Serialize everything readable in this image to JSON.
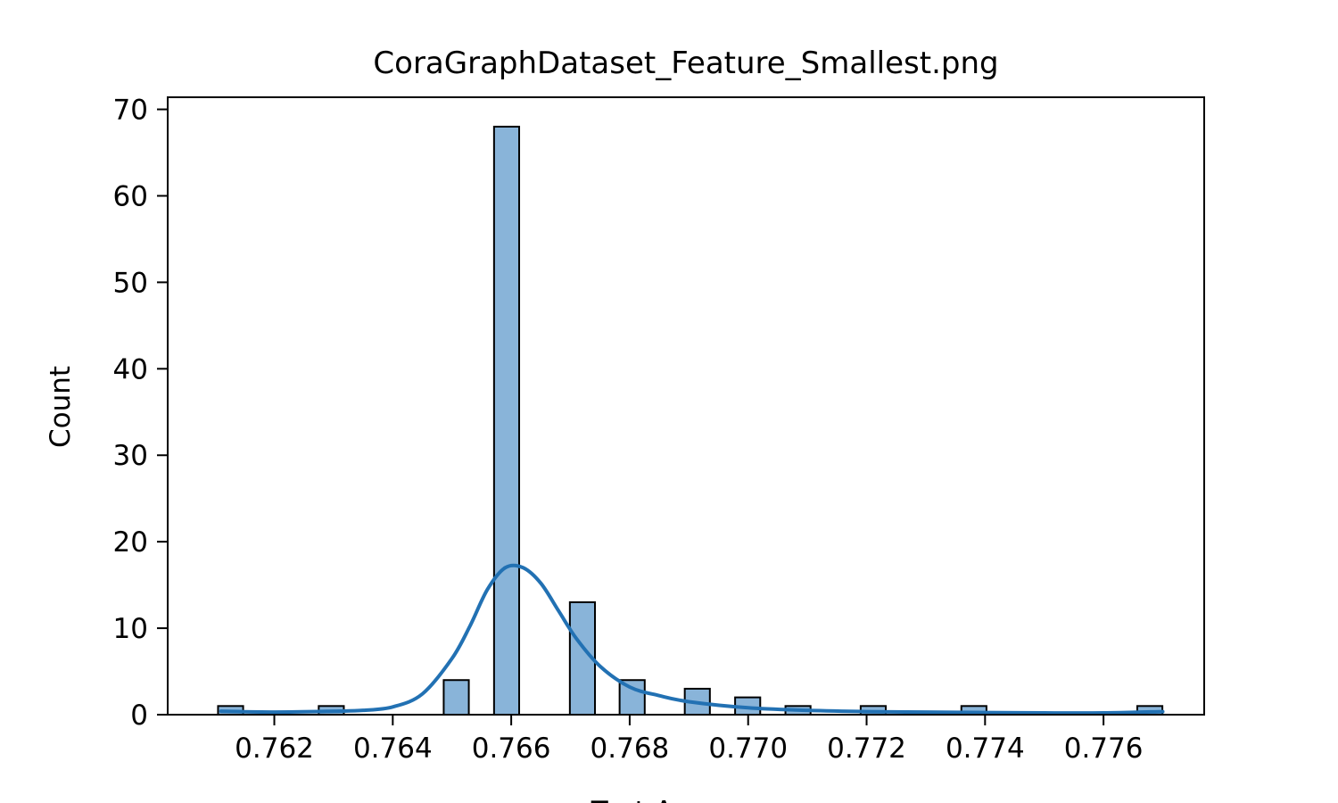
{
  "chart_data": {
    "type": "bar",
    "title": "CoraGraphDataset_Feature_Smallest.png",
    "xlabel": "Test Accuracy",
    "ylabel": "Count",
    "xlim": [
      0.7602,
      0.7777
    ],
    "ylim": [
      0,
      71.4
    ],
    "x_ticks": [
      0.762,
      0.764,
      0.766,
      0.768,
      0.77,
      0.772,
      0.774,
      0.776
    ],
    "x_tick_labels": [
      "0.762",
      "0.764",
      "0.766",
      "0.768",
      "0.770",
      "0.772",
      "0.774",
      "0.776"
    ],
    "y_ticks": [
      0,
      10,
      20,
      30,
      40,
      50,
      60,
      70
    ],
    "y_tick_labels": [
      "0",
      "10",
      "20",
      "30",
      "40",
      "50",
      "60",
      "70"
    ],
    "grid": false,
    "bin_width": 0.000424,
    "bars": [
      {
        "x_start": 0.76105,
        "count": 1
      },
      {
        "x_start": 0.76275,
        "count": 1
      },
      {
        "x_start": 0.76486,
        "count": 4
      },
      {
        "x_start": 0.76571,
        "count": 68
      },
      {
        "x_start": 0.76699,
        "count": 13
      },
      {
        "x_start": 0.76783,
        "count": 4
      },
      {
        "x_start": 0.76893,
        "count": 3
      },
      {
        "x_start": 0.76978,
        "count": 2
      },
      {
        "x_start": 0.77063,
        "count": 1
      },
      {
        "x_start": 0.7719,
        "count": 1
      },
      {
        "x_start": 0.7736,
        "count": 1
      },
      {
        "x_start": 0.77657,
        "count": 1
      }
    ],
    "kde": {
      "x": [
        0.7611,
        0.762,
        0.763,
        0.7635,
        0.764,
        0.7645,
        0.765,
        0.7653,
        0.7656,
        0.7659,
        0.7662,
        0.7665,
        0.7668,
        0.7671,
        0.7675,
        0.768,
        0.7685,
        0.769,
        0.77,
        0.771,
        0.772,
        0.773,
        0.774,
        0.775,
        0.776,
        0.777
      ],
      "y": [
        0.4,
        0.3,
        0.4,
        0.5,
        0.9,
        2.4,
        6.5,
        10.2,
        14.5,
        17.0,
        17.0,
        15.2,
        12.0,
        8.8,
        5.6,
        3.2,
        2.2,
        1.5,
        0.8,
        0.5,
        0.35,
        0.3,
        0.25,
        0.2,
        0.2,
        0.35
      ]
    },
    "colors": {
      "bar_fill": "#89b4d9",
      "bar_edge": "#000000",
      "kde_line": "#2271b3"
    }
  }
}
